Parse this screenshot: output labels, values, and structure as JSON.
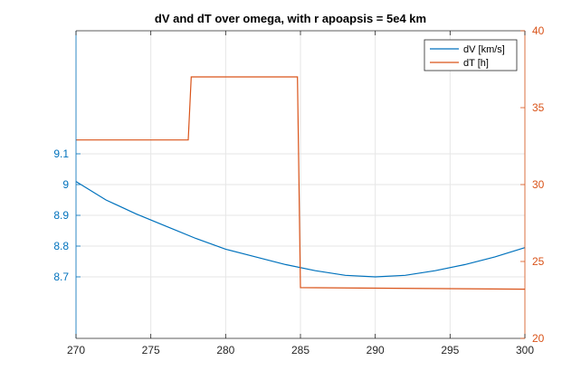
{
  "chart_data": {
    "type": "line",
    "title": "dV and dT over omega, with r apoapsis = 5e4 km",
    "xlabel": "",
    "xlim": [
      270,
      300
    ],
    "xticks": [
      270,
      275,
      280,
      285,
      290,
      295,
      300
    ],
    "left_axis": {
      "label": "",
      "ylim": [
        8.5,
        9.5
      ],
      "ticks": [
        8.7,
        8.8,
        8.9,
        9,
        9.1
      ],
      "tick_labels": [
        "8.7",
        "8.8",
        "8.9",
        "9",
        "9.1"
      ],
      "color": "#0072BD"
    },
    "right_axis": {
      "label": "",
      "ylim": [
        20,
        40
      ],
      "ticks": [
        20,
        25,
        30,
        35,
        40
      ],
      "tick_labels": [
        "20",
        "25",
        "30",
        "35",
        "40"
      ],
      "color": "#D95319"
    },
    "grid": true,
    "legend_location": "top-right",
    "series": [
      {
        "name": "dV [km/s]",
        "axis": "left",
        "color": "#0072BD",
        "x": [
          270,
          272,
          274,
          276,
          278,
          280,
          282,
          284,
          286,
          288,
          290,
          292,
          294,
          296,
          298,
          300
        ],
        "y": [
          9.01,
          8.95,
          8.905,
          8.865,
          8.825,
          8.79,
          8.765,
          8.74,
          8.72,
          8.705,
          8.7,
          8.705,
          8.72,
          8.74,
          8.765,
          8.795
        ]
      },
      {
        "name": "dT [h]",
        "axis": "right",
        "color": "#D95319",
        "x": [
          270,
          277.5,
          277.7,
          284.8,
          285.0,
          300
        ],
        "y": [
          32.9,
          32.9,
          37.0,
          37.0,
          23.3,
          23.2
        ]
      }
    ]
  }
}
